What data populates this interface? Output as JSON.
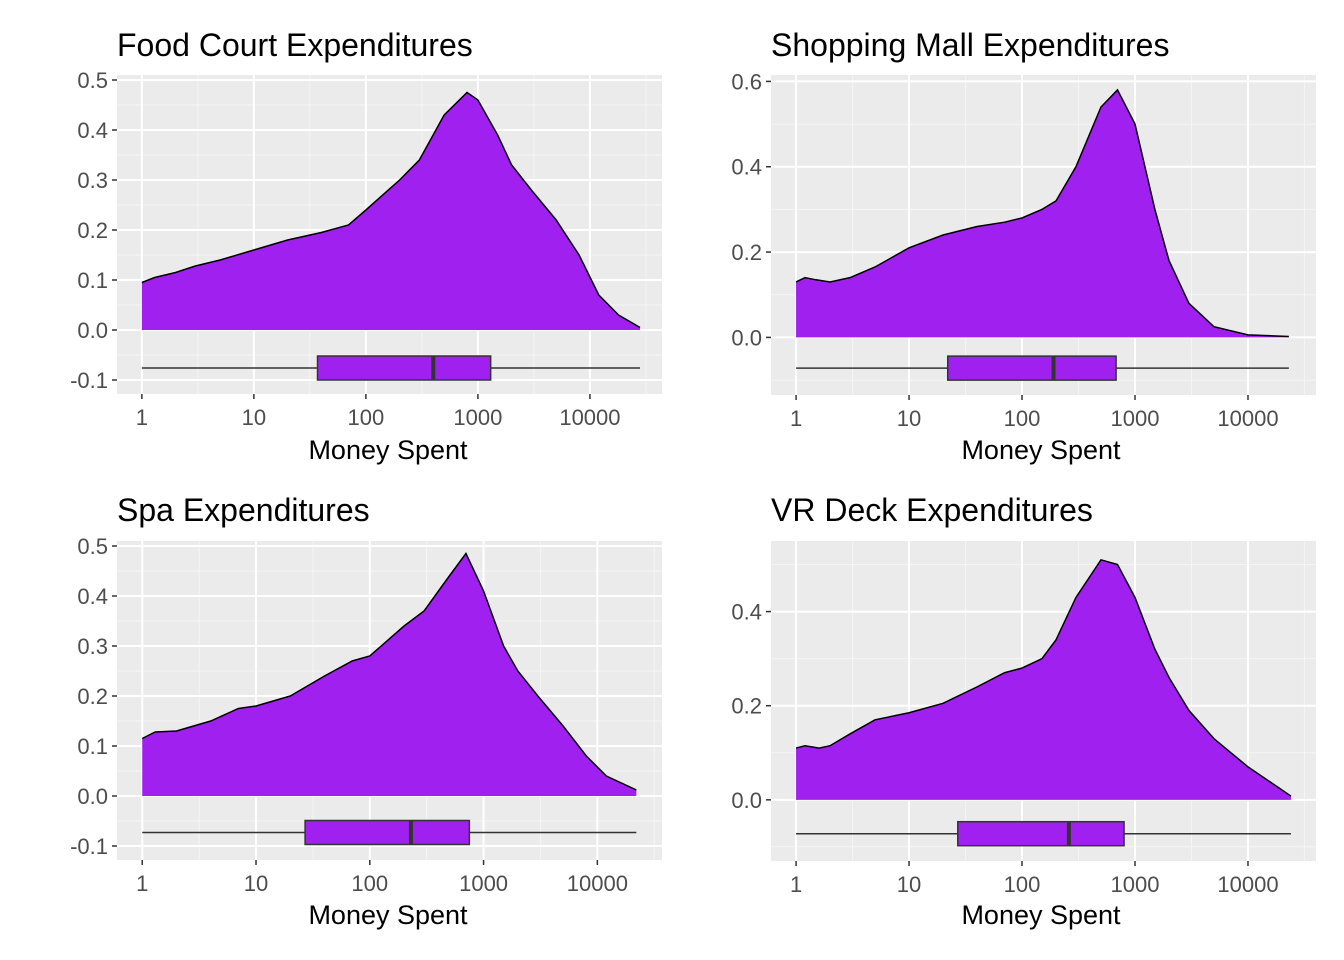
{
  "colors": {
    "fill": "#a020f0",
    "outline": "#000000",
    "box_outline": "#333333",
    "panel_bg": "#ebebeb",
    "grid_major": "#ffffff",
    "grid_minor": "#f5f5f5",
    "tick_label": "#4d4d4d"
  },
  "chart_data": [
    {
      "type": "density",
      "title": "Food Court Expenditures",
      "xlabel": "Money Spent",
      "ylabel": "",
      "x_scale": "log10",
      "x_ticks": [
        1,
        10,
        100,
        1000,
        10000
      ],
      "x_tick_labels": [
        "1",
        "10",
        "100",
        "1000",
        "10000"
      ],
      "xlim": [
        0.6,
        44000
      ],
      "y_ticks": [
        -0.1,
        0.0,
        0.1,
        0.2,
        0.3,
        0.4,
        0.5
      ],
      "y_tick_labels": [
        "-0.1",
        "0.0",
        "0.1",
        "0.2",
        "0.3",
        "0.4",
        "0.5"
      ],
      "ylim": [
        -0.128,
        0.51
      ],
      "grid": true,
      "density": {
        "x": [
          1,
          1.3,
          2,
          3,
          5,
          10,
          20,
          40,
          70,
          100,
          200,
          300,
          500,
          800,
          1000,
          1500,
          2000,
          3000,
          5000,
          8000,
          12000,
          18000,
          28000
        ],
        "y": [
          0.095,
          0.105,
          0.115,
          0.128,
          0.14,
          0.16,
          0.18,
          0.195,
          0.21,
          0.24,
          0.3,
          0.34,
          0.43,
          0.475,
          0.46,
          0.39,
          0.33,
          0.28,
          0.22,
          0.15,
          0.07,
          0.03,
          0.005
        ]
      },
      "boxplot": {
        "y": -0.076,
        "min": 1,
        "q1": 37,
        "median": 400,
        "q3": 1300,
        "max": 28000
      }
    },
    {
      "type": "density",
      "title": "Shopping Mall Expenditures",
      "xlabel": "Money Spent",
      "ylabel": "",
      "x_scale": "log10",
      "x_ticks": [
        1,
        10,
        100,
        1000,
        10000
      ],
      "x_tick_labels": [
        "1",
        "10",
        "100",
        "1000",
        "10000"
      ],
      "xlim": [
        0.6,
        40000
      ],
      "y_ticks": [
        0.0,
        0.2,
        0.4,
        0.6
      ],
      "y_tick_labels": [
        "0.0",
        "0.2",
        "0.4",
        "0.6"
      ],
      "ylim": [
        -0.135,
        0.615
      ],
      "grid": true,
      "density": {
        "x": [
          1,
          1.2,
          1.5,
          2,
          3,
          5,
          10,
          20,
          40,
          70,
          100,
          150,
          200,
          300,
          500,
          700,
          1000,
          1500,
          2000,
          3000,
          5000,
          10000,
          23000
        ],
        "y": [
          0.13,
          0.14,
          0.135,
          0.13,
          0.14,
          0.165,
          0.21,
          0.24,
          0.26,
          0.27,
          0.28,
          0.3,
          0.32,
          0.4,
          0.54,
          0.58,
          0.5,
          0.3,
          0.18,
          0.08,
          0.025,
          0.006,
          0.002
        ]
      },
      "boxplot": {
        "y": -0.072,
        "min": 1,
        "q1": 22,
        "median": 190,
        "q3": 680,
        "max": 23000
      }
    },
    {
      "type": "density",
      "title": "Spa Expenditures",
      "xlabel": "Money Spent",
      "ylabel": "",
      "x_scale": "log10",
      "x_ticks": [
        1,
        10,
        100,
        1000,
        10000
      ],
      "x_tick_labels": [
        "1",
        "10",
        "100",
        "1000",
        "10000"
      ],
      "xlim": [
        0.6,
        37000
      ],
      "y_ticks": [
        -0.1,
        0.0,
        0.1,
        0.2,
        0.3,
        0.4,
        0.5
      ],
      "y_tick_labels": [
        "-0.1",
        "0.0",
        "0.1",
        "0.2",
        "0.3",
        "0.4",
        "0.5"
      ],
      "ylim": [
        -0.128,
        0.51
      ],
      "grid": true,
      "density": {
        "x": [
          1,
          1.3,
          2,
          4,
          7,
          10,
          20,
          40,
          70,
          100,
          200,
          300,
          500,
          700,
          1000,
          1500,
          2000,
          3000,
          5000,
          8000,
          12000,
          22000
        ],
        "y": [
          0.115,
          0.128,
          0.13,
          0.15,
          0.175,
          0.18,
          0.2,
          0.24,
          0.27,
          0.28,
          0.34,
          0.37,
          0.44,
          0.485,
          0.41,
          0.3,
          0.25,
          0.2,
          0.14,
          0.08,
          0.04,
          0.012
        ]
      },
      "boxplot": {
        "y": -0.073,
        "min": 1,
        "q1": 27,
        "median": 230,
        "q3": 750,
        "max": 22000
      }
    },
    {
      "type": "density",
      "title": "VR Deck Expenditures",
      "xlabel": "Money Spent",
      "ylabel": "",
      "x_scale": "log10",
      "x_ticks": [
        1,
        10,
        100,
        1000,
        10000
      ],
      "x_tick_labels": [
        "1",
        "10",
        "100",
        "1000",
        "10000"
      ],
      "xlim": [
        0.6,
        40000
      ],
      "y_ticks": [
        0.0,
        0.2,
        0.4
      ],
      "y_tick_labels": [
        "0.0",
        "0.2",
        "0.4"
      ],
      "ylim": [
        -0.13,
        0.55
      ],
      "grid": true,
      "density": {
        "x": [
          1,
          1.2,
          1.6,
          2,
          3,
          5,
          10,
          20,
          40,
          70,
          100,
          150,
          200,
          300,
          500,
          700,
          1000,
          1500,
          2000,
          3000,
          5000,
          10000,
          24000
        ],
        "y": [
          0.11,
          0.115,
          0.11,
          0.115,
          0.14,
          0.17,
          0.185,
          0.205,
          0.24,
          0.27,
          0.28,
          0.3,
          0.34,
          0.43,
          0.51,
          0.5,
          0.43,
          0.32,
          0.26,
          0.19,
          0.13,
          0.07,
          0.008
        ]
      },
      "boxplot": {
        "y": -0.072,
        "min": 1,
        "q1": 27,
        "median": 260,
        "q3": 800,
        "max": 24000
      }
    }
  ]
}
